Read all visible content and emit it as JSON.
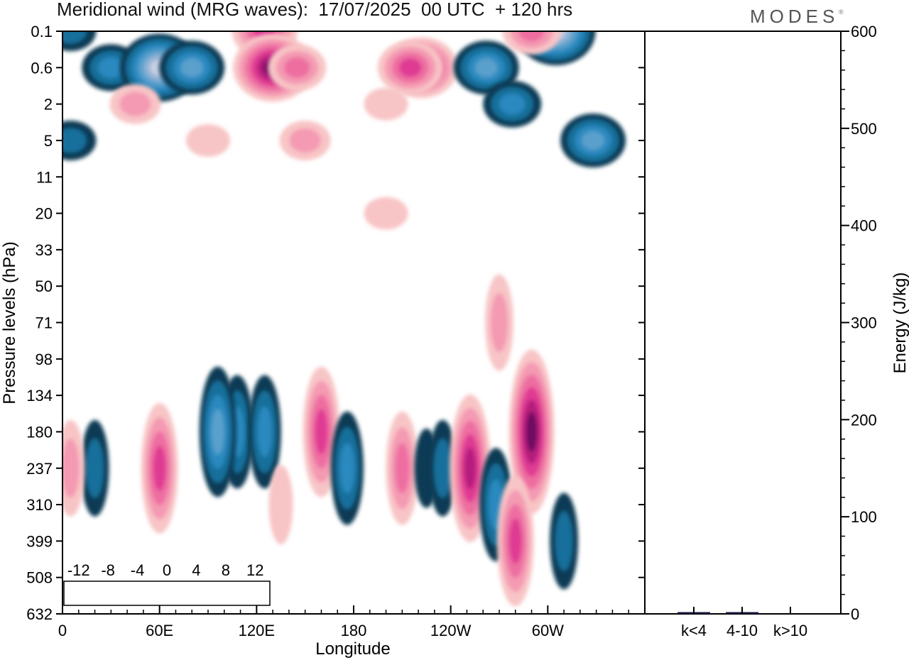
{
  "header": {
    "title": "Meridional wind (MRG waves):  17/07/2025  00 UTC  + 120 hrs",
    "brand": "MODES",
    "brand_mark": "®"
  },
  "colors": {
    "negative": [
      "#0e3a55",
      "#176f9b",
      "#2c89bf",
      "#5aa0cc",
      "#93b3d6",
      "#c9cfe4"
    ],
    "zero": "#ffffff",
    "positive": [
      "#f8c5c6",
      "#f49ab2",
      "#ee6ea1",
      "#df3b93",
      "#b51c7d",
      "#6e0a60"
    ]
  },
  "chart_data": [
    {
      "type": "heatmap",
      "xlabel": "Longitude",
      "ylabel": "Pressure levels (hPa)",
      "x_ticks": [
        "0",
        "60E",
        "120E",
        "180",
        "120W",
        "60W"
      ],
      "y_ticks": [
        "0.1",
        "0.6",
        "2",
        "5",
        "11",
        "20",
        "33",
        "50",
        "71",
        "98",
        "134",
        "180",
        "237",
        "310",
        "399",
        "508",
        "632"
      ],
      "colorbar": {
        "tick_labels": [
          "-12",
          "-8",
          "-4",
          "0",
          "4",
          "8",
          "12"
        ],
        "levels": [
          -14,
          -12,
          -10,
          -8,
          -6,
          -4,
          -2,
          0,
          2,
          4,
          6,
          8,
          10,
          12,
          14
        ]
      },
      "features": [
        {
          "lon": 5,
          "level": "0.1",
          "value": -4
        },
        {
          "lon": 30,
          "level": "0.6",
          "value": -6
        },
        {
          "lon": 60,
          "level": "0.6",
          "value": -12
        },
        {
          "lon": 80,
          "level": "0.6",
          "value": -8
        },
        {
          "lon": 125,
          "level": "0.1",
          "value": 8
        },
        {
          "lon": 130,
          "level": "0.6",
          "value": 14
        },
        {
          "lon": 145,
          "level": "0.6",
          "value": 6
        },
        {
          "lon": 45,
          "level": "2",
          "value": 4
        },
        {
          "lon": 90,
          "level": "5",
          "value": 2
        },
        {
          "lon": 150,
          "level": "5",
          "value": 4
        },
        {
          "lon": 200,
          "level": "2",
          "value": 2
        },
        {
          "lon": 222,
          "level": "0.6",
          "value": 10
        },
        {
          "lon": 215,
          "level": "0.6",
          "value": 8
        },
        {
          "lon": 262,
          "level": "0.6",
          "value": -8
        },
        {
          "lon": 305,
          "level": "0.1",
          "value": -14
        },
        {
          "lon": 290,
          "level": "0.1",
          "value": 6
        },
        {
          "lon": 278,
          "level": "2",
          "value": -6
        },
        {
          "lon": 328,
          "level": "5",
          "value": -8
        },
        {
          "lon": 5,
          "level": "5",
          "value": -4
        },
        {
          "lon": 200,
          "level": "20",
          "value": 2
        },
        {
          "lon": 60,
          "level": "237",
          "value": 8
        },
        {
          "lon": 20,
          "level": "237",
          "value": -4
        },
        {
          "lon": 108,
          "level": "180",
          "value": -6
        },
        {
          "lon": 96,
          "level": "180",
          "value": -8
        },
        {
          "lon": 125,
          "level": "180",
          "value": -6
        },
        {
          "lon": 135,
          "level": "310",
          "value": 2
        },
        {
          "lon": 160,
          "level": "180",
          "value": 8
        },
        {
          "lon": 176,
          "level": "237",
          "value": -6
        },
        {
          "lon": 210,
          "level": "237",
          "value": 6
        },
        {
          "lon": 225,
          "level": "237",
          "value": -2
        },
        {
          "lon": 235,
          "level": "237",
          "value": -4
        },
        {
          "lon": 252,
          "level": "237",
          "value": 10
        },
        {
          "lon": 268,
          "level": "310",
          "value": -6
        },
        {
          "lon": 290,
          "level": "180",
          "value": 12
        },
        {
          "lon": 270,
          "level": "71",
          "value": 4
        },
        {
          "lon": 280,
          "level": "399",
          "value": 8
        },
        {
          "lon": 310,
          "level": "399",
          "value": -4
        },
        {
          "lon": 5,
          "level": "237",
          "value": 4
        }
      ]
    },
    {
      "type": "bar",
      "ylabel": "Energy (J/kg)",
      "categories": [
        "k<4",
        "4-10",
        "k>10"
      ],
      "values": [
        0.5,
        1.5,
        0
      ],
      "ylim": [
        0,
        600
      ],
      "y_ticks": [
        "0",
        "100",
        "200",
        "300",
        "400",
        "500",
        "600"
      ],
      "bar_color": "#1a1a40"
    }
  ]
}
